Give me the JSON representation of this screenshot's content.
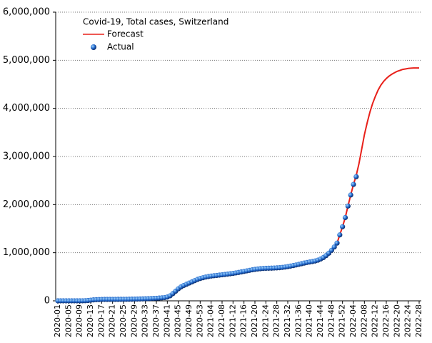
{
  "chart_data": {
    "type": "line",
    "title": "Covid-19, Total cases, Switzerland",
    "categories": [
      "2020-01",
      null,
      null,
      null,
      "2020-05",
      null,
      null,
      null,
      "2020-09",
      null,
      null,
      null,
      "2020-13",
      null,
      null,
      null,
      "2020-17",
      null,
      null,
      null,
      "2020-21",
      null,
      null,
      null,
      "2020-25",
      null,
      null,
      null,
      "2020-29",
      null,
      null,
      null,
      "2020-33",
      null,
      null,
      null,
      "2020-37",
      null,
      null,
      null,
      "2020-41",
      null,
      null,
      null,
      "2020-45",
      null,
      null,
      null,
      "2020-49",
      null,
      null,
      null,
      "2020-53",
      null,
      null,
      null,
      "2021-04",
      null,
      null,
      null,
      "2021-08",
      null,
      null,
      null,
      "2021-12",
      null,
      null,
      null,
      "2021-16",
      null,
      null,
      null,
      "2021-20",
      null,
      null,
      null,
      "2021-24",
      null,
      null,
      null,
      "2021-28",
      null,
      null,
      null,
      "2021-32",
      null,
      null,
      null,
      "2021-36",
      null,
      null,
      null,
      "2021-40",
      null,
      null,
      null,
      "2021-44",
      null,
      null,
      null,
      "2021-48",
      null,
      null,
      null,
      "2021-52",
      null,
      null,
      null,
      "2022-04",
      null,
      null,
      null,
      "2022-08",
      null,
      null,
      null,
      "2022-12",
      null,
      null,
      null,
      "2022-16",
      null,
      null,
      null,
      "2022-20",
      null,
      null,
      null,
      "2022-24",
      null,
      null,
      null,
      "2022-28"
    ],
    "series": [
      {
        "name": "Forecast",
        "type": "line",
        "color": "#e8201a",
        "values": [
          0,
          0,
          0,
          0,
          0,
          0,
          0,
          0,
          0,
          1000,
          2500,
          7000,
          14000,
          20000,
          24000,
          26500,
          28500,
          29500,
          30000,
          30500,
          30800,
          31000,
          31200,
          31400,
          31700,
          32500,
          33500,
          35000,
          36000,
          37500,
          39000,
          41000,
          43000,
          45000,
          47000,
          50000,
          53000,
          57000,
          62000,
          68000,
          80000,
          105000,
          150000,
          200000,
          250000,
          290000,
          320000,
          345000,
          370000,
          395000,
          420000,
          445000,
          465000,
          480000,
          495000,
          505000,
          515000,
          522000,
          528000,
          535000,
          541000,
          548000,
          555000,
          563000,
          571000,
          580000,
          590000,
          601000,
          612000,
          623000,
          634000,
          645000,
          654000,
          662000,
          668000,
          673000,
          676000,
          678000,
          680000,
          682000,
          685000,
          689000,
          695000,
          703000,
          712000,
          722000,
          733000,
          745000,
          758000,
          772000,
          785000,
          797000,
          808000,
          817000,
          828000,
          845000,
          870000,
          900000,
          940000,
          990000,
          1050000,
          1120000,
          1200000,
          1370000,
          1540000,
          1730000,
          1970000,
          2200000,
          2420000,
          2600000,
          2850000,
          3150000,
          3450000,
          3700000,
          3920000,
          4100000,
          4250000,
          4380000,
          4480000,
          4560000,
          4620000,
          4670000,
          4710000,
          4740000,
          4770000,
          4790000,
          4810000,
          4820000,
          4830000,
          4835000,
          4840000,
          4840000,
          4840000
        ]
      },
      {
        "name": "Actual",
        "type": "scatter",
        "color": "#1e64c8",
        "values": [
          0,
          0,
          0,
          0,
          0,
          0,
          0,
          0,
          0,
          1000,
          2500,
          7000,
          14000,
          20000,
          24000,
          26500,
          28500,
          29500,
          30000,
          30500,
          30800,
          31000,
          31200,
          31400,
          31700,
          32500,
          33500,
          35000,
          36000,
          37500,
          39000,
          41000,
          43000,
          45000,
          47000,
          50000,
          53000,
          57000,
          62000,
          68000,
          80000,
          105000,
          150000,
          200000,
          250000,
          290000,
          320000,
          345000,
          370000,
          395000,
          420000,
          445000,
          465000,
          480000,
          495000,
          505000,
          515000,
          522000,
          528000,
          535000,
          541000,
          548000,
          555000,
          563000,
          571000,
          580000,
          590000,
          601000,
          612000,
          623000,
          634000,
          645000,
          654000,
          662000,
          668000,
          673000,
          676000,
          678000,
          680000,
          682000,
          685000,
          689000,
          695000,
          703000,
          712000,
          722000,
          733000,
          745000,
          758000,
          772000,
          785000,
          797000,
          808000,
          817000,
          828000,
          845000,
          870000,
          900000,
          940000,
          990000,
          1050000,
          1120000,
          1200000,
          1370000,
          1540000,
          1730000,
          1970000,
          2200000,
          2420000,
          2580000,
          null,
          null,
          null,
          null,
          null,
          null,
          null,
          null,
          null,
          null,
          null,
          null,
          null,
          null,
          null,
          null,
          null,
          null,
          null,
          null,
          null,
          null,
          null
        ]
      }
    ],
    "ylim": [
      0,
      6000000
    ],
    "yticks": [
      0,
      {
        "value": 1000000,
        "label": "1,000,000"
      },
      {
        "value": 2000000,
        "label": "2,000,000"
      },
      {
        "value": 3000000,
        "label": "3,000,000"
      },
      {
        "value": 4000000,
        "label": "4,000,000"
      },
      {
        "value": 5000000,
        "label": "5,000,000"
      },
      {
        "value": 6000000,
        "label": "6,000,000"
      }
    ],
    "grid": true
  }
}
